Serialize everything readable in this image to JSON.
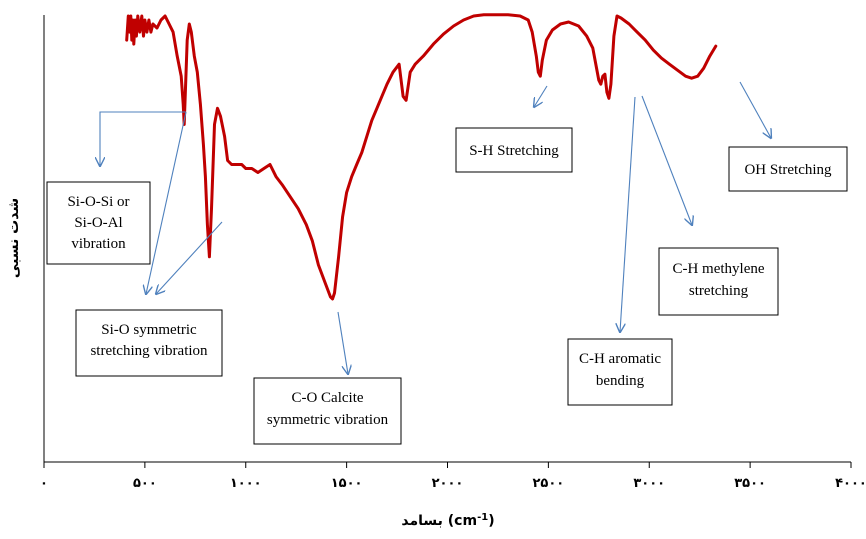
{
  "chart_data": {
    "type": "line",
    "xlabel": "بسامد (cm-1)",
    "xlabel_parts": {
      "prefix": "بسامد (cm",
      "sup": "-1",
      "suffix": ")"
    },
    "ylabel": "شدت نسبی",
    "xlim": [
      0,
      4000
    ],
    "ylim": [
      0,
      100
    ],
    "grid": false,
    "x_ticks": [
      {
        "value": 0,
        "label": "۰"
      },
      {
        "value": 500,
        "label": "۵۰۰"
      },
      {
        "value": 1000,
        "label": "۱۰۰۰"
      },
      {
        "value": 1500,
        "label": "۱۵۰۰"
      },
      {
        "value": 2000,
        "label": "۲۰۰۰"
      },
      {
        "value": 2500,
        "label": "۲۵۰۰"
      },
      {
        "value": 3000,
        "label": "۳۰۰۰"
      },
      {
        "value": 3500,
        "label": "۳۵۰۰"
      },
      {
        "value": 4000,
        "label": "۴۰۰۰"
      }
    ],
    "series": [
      {
        "color": "#c00000",
        "points": [
          [
            410,
            94
          ],
          [
            418,
            100
          ],
          [
            425,
            96
          ],
          [
            430,
            100
          ],
          [
            435,
            94
          ],
          [
            440,
            99
          ],
          [
            445,
            93
          ],
          [
            452,
            99
          ],
          [
            458,
            95
          ],
          [
            465,
            100
          ],
          [
            475,
            96
          ],
          [
            485,
            100
          ],
          [
            493,
            95
          ],
          [
            500,
            99
          ],
          [
            510,
            96
          ],
          [
            520,
            99
          ],
          [
            530,
            96
          ],
          [
            540,
            98
          ],
          [
            560,
            97
          ],
          [
            580,
            99
          ],
          [
            600,
            100
          ],
          [
            620,
            98
          ],
          [
            640,
            96
          ],
          [
            660,
            90
          ],
          [
            680,
            85
          ],
          [
            690,
            78
          ],
          [
            695,
            73
          ],
          [
            700,
            80
          ],
          [
            710,
            94
          ],
          [
            720,
            98
          ],
          [
            730,
            96
          ],
          [
            745,
            90
          ],
          [
            760,
            86
          ],
          [
            775,
            78
          ],
          [
            790,
            68
          ],
          [
            800,
            60
          ],
          [
            810,
            48
          ],
          [
            820,
            40
          ],
          [
            830,
            52
          ],
          [
            845,
            73
          ],
          [
            860,
            77
          ],
          [
            875,
            75
          ],
          [
            895,
            70
          ],
          [
            910,
            64
          ],
          [
            930,
            63
          ],
          [
            950,
            63
          ],
          [
            980,
            63
          ],
          [
            1000,
            62
          ],
          [
            1030,
            62
          ],
          [
            1060,
            61
          ],
          [
            1090,
            62
          ],
          [
            1120,
            63
          ],
          [
            1150,
            60
          ],
          [
            1180,
            58
          ],
          [
            1220,
            55
          ],
          [
            1260,
            52
          ],
          [
            1300,
            48
          ],
          [
            1330,
            44
          ],
          [
            1360,
            38
          ],
          [
            1390,
            34
          ],
          [
            1420,
            30
          ],
          [
            1430,
            29.5
          ],
          [
            1440,
            31
          ],
          [
            1460,
            40
          ],
          [
            1480,
            50
          ],
          [
            1500,
            56
          ],
          [
            1525,
            60
          ],
          [
            1550,
            63
          ],
          [
            1575,
            66
          ],
          [
            1600,
            70
          ],
          [
            1625,
            74
          ],
          [
            1650,
            77
          ],
          [
            1675,
            80
          ],
          [
            1700,
            83
          ],
          [
            1730,
            86
          ],
          [
            1760,
            88
          ],
          [
            1780,
            80
          ],
          [
            1795,
            79
          ],
          [
            1815,
            86
          ],
          [
            1840,
            88
          ],
          [
            1880,
            90
          ],
          [
            1930,
            93
          ],
          [
            1980,
            95.5
          ],
          [
            2030,
            97.5
          ],
          [
            2080,
            99
          ],
          [
            2130,
            100
          ],
          [
            2180,
            100.3
          ],
          [
            2250,
            100.3
          ],
          [
            2300,
            100.3
          ],
          [
            2360,
            100
          ],
          [
            2400,
            99
          ],
          [
            2420,
            96
          ],
          [
            2440,
            90
          ],
          [
            2450,
            86
          ],
          [
            2460,
            85
          ],
          [
            2470,
            89
          ],
          [
            2490,
            94
          ],
          [
            2520,
            96.5
          ],
          [
            2560,
            98
          ],
          [
            2600,
            98.5
          ],
          [
            2650,
            97.5
          ],
          [
            2690,
            95
          ],
          [
            2720,
            92
          ],
          [
            2735,
            88
          ],
          [
            2750,
            84
          ],
          [
            2760,
            83
          ],
          [
            2770,
            85
          ],
          [
            2780,
            85.5
          ],
          [
            2790,
            81
          ],
          [
            2800,
            79.5
          ],
          [
            2810,
            83
          ],
          [
            2825,
            95
          ],
          [
            2840,
            100
          ],
          [
            2860,
            99.5
          ],
          [
            2900,
            98
          ],
          [
            2940,
            96
          ],
          [
            2980,
            94
          ],
          [
            3020,
            91.5
          ],
          [
            3060,
            89.5
          ],
          [
            3100,
            88
          ],
          [
            3140,
            86.5
          ],
          [
            3180,
            85
          ],
          [
            3210,
            84.5
          ],
          [
            3240,
            85
          ],
          [
            3270,
            87
          ],
          [
            3300,
            90
          ],
          [
            3330,
            92.5
          ]
        ]
      }
    ],
    "annotations": [
      {
        "text_lines": [
          "Si-O-Si or",
          "Si-O-Al",
          "vibration"
        ],
        "text_x": 280,
        "text_y": 55,
        "arrow_label_pos": "pointer"
      },
      {
        "text_lines": [
          "Si-O symmetric",
          "stretching vibration"
        ],
        "text_x": 500,
        "text_y": 28
      },
      {
        "text_lines": [
          "C-O Calcite",
          "symmetric vibration"
        ],
        "text_x": 1500,
        "text_y": 12
      },
      {
        "text_lines": [
          "S-H Stretching"
        ],
        "text_x": 2180,
        "text_y": 70
      },
      {
        "text_lines": [
          "C-H aromatic",
          "bending"
        ],
        "text_x": 2900,
        "text_y": 25
      },
      {
        "text_lines": [
          "C-H methylene",
          "stretching"
        ],
        "text_x": 3240,
        "text_y": 42
      },
      {
        "text_lines": [
          "OH Stretching"
        ],
        "text_x": 3480,
        "text_y": 64
      }
    ]
  }
}
